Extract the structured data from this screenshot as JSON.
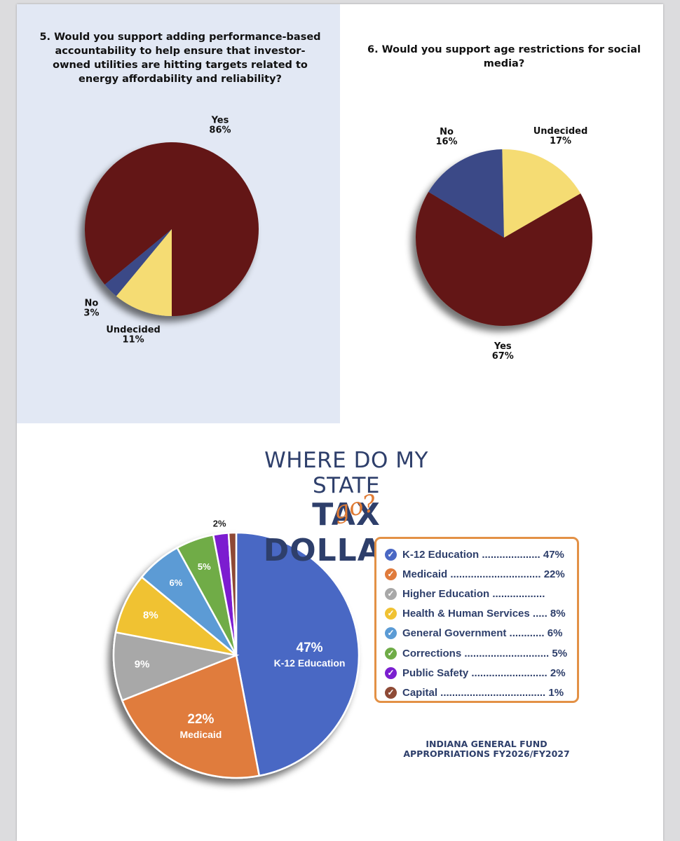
{
  "chart_data": [
    {
      "type": "pie",
      "title": "5. Would you support adding performance-based accountability to help ensure that investor-owned utilities are hitting targets related to energy affordability and reliability?",
      "categories": [
        "Yes",
        "No",
        "Undecided"
      ],
      "values": [
        86,
        3,
        11
      ],
      "value_labels": [
        "86%",
        "3%",
        "11%"
      ],
      "colors": [
        "#641915",
        "#3b4a87",
        "#f5dc73"
      ]
    },
    {
      "type": "pie",
      "title": "6. Would you support age restrictions for social media?",
      "categories": [
        "Yes",
        "No",
        "Undecided"
      ],
      "values": [
        67,
        16,
        17
      ],
      "value_labels": [
        "67%",
        "16%",
        "17%"
      ],
      "colors": [
        "#641915",
        "#3b4a87",
        "#f5dc73"
      ]
    },
    {
      "type": "pie",
      "title": "WHERE DO MY STATE TAX DOLLARS go?",
      "categories": [
        "K-12 Education",
        "Medicaid",
        "Higher Education",
        "Health & Human Services",
        "General Government",
        "Corrections",
        "Public Safety",
        "Capital"
      ],
      "values": [
        47,
        22,
        9,
        8,
        6,
        5,
        2,
        1
      ],
      "slice_labels": [
        "47%",
        "22%",
        "9%",
        "8%",
        "6%",
        "5%",
        "2%",
        ""
      ],
      "slice_sublabels": [
        "K-12 Education",
        "Medicaid",
        "",
        "",
        "",
        "",
        "",
        ""
      ],
      "colors": [
        "#4a68c4",
        "#e07b3c",
        "#a8a8a8",
        "#f0c233",
        "#5b9bd5",
        "#6fac47",
        "#7b1fd0",
        "#8e4a36"
      ]
    }
  ],
  "budget_legend": [
    {
      "text": "K-12 Education .................... 47%",
      "color": "#4a68c4"
    },
    {
      "text": "Medicaid ............................... 22%",
      "color": "#e07b3c"
    },
    {
      "text": "Higher Education ..................",
      "color": "#a8a8a8"
    },
    {
      "text": "Health & Human Services ..... 8%",
      "color": "#f0c233"
    },
    {
      "text": "General Government ............ 6%",
      "color": "#5b9bd5"
    },
    {
      "text": "Corrections ............................. 5%",
      "color": "#6fac47"
    },
    {
      "text": "Public Safety .......................... 2%",
      "color": "#7b1fd0"
    },
    {
      "text": "Capital .................................... 1%",
      "color": "#8e4a36"
    }
  ],
  "headline": {
    "line1": "WHERE DO MY STATE",
    "line2": "TAX DOLLARS",
    "flourish": "go?"
  },
  "source_note": {
    "line1": "INDIANA GENERAL FUND",
    "line2": "APPROPRIATIONS FY2026/FY2027"
  },
  "legend_check_glyph": "✓"
}
